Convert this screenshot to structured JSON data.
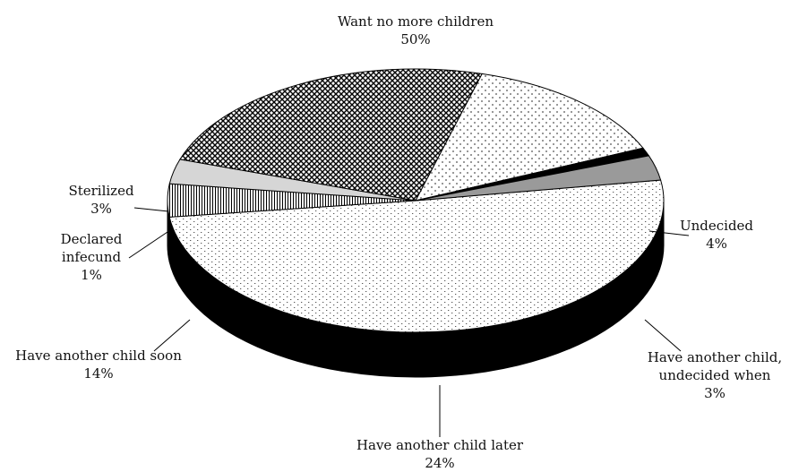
{
  "chart_data": {
    "type": "pie",
    "title": "",
    "three_d": true,
    "slices": [
      {
        "label": "Want no more children",
        "value": 50,
        "value_label": "50%",
        "pattern": "dots-fine"
      },
      {
        "label": "Undecided",
        "value": 4,
        "value_label": "4%",
        "pattern": "vertical-lines"
      },
      {
        "label": "Have another child, undecided when",
        "value": 3,
        "value_label": "3%",
        "pattern": "light-gray"
      },
      {
        "label": "Have another child later",
        "value": 24,
        "value_label": "24%",
        "pattern": "crosshatch"
      },
      {
        "label": "Have another child soon",
        "value": 14,
        "value_label": "14%",
        "pattern": "diamond-dots"
      },
      {
        "label": "Declared infecund",
        "value": 1,
        "value_label": "1%",
        "pattern": "black"
      },
      {
        "label": "Sterilized",
        "value": 3,
        "value_label": "3%",
        "pattern": "gray"
      }
    ]
  }
}
